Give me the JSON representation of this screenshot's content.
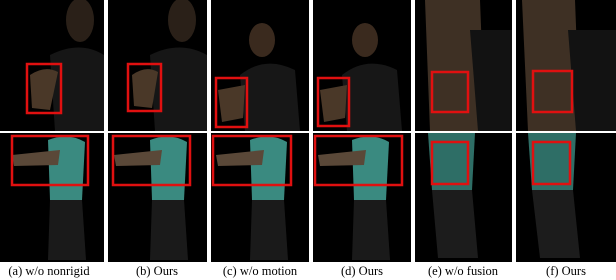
{
  "figure": {
    "captions": [
      "(a) w/o nonrigid",
      "(b) Ours",
      "(c) w/o motion",
      "(d) Ours",
      "(e) w/o fusion",
      "(f) Ours"
    ]
  }
}
